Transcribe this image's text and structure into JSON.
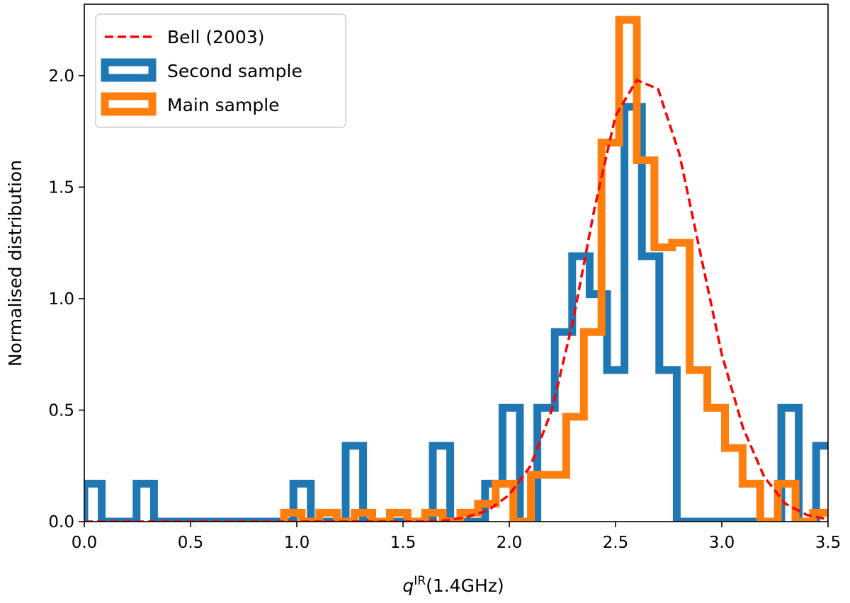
{
  "chart_data": {
    "type": "histogram",
    "title": "",
    "xlabel": {
      "italic": "q",
      "superscript": "IR",
      "rest": "(1.4GHz)"
    },
    "ylabel": "Normalised distribution",
    "xlim": [
      0.0,
      3.5
    ],
    "ylim": [
      0.0,
      2.32
    ],
    "xticks": [
      "0.0",
      "0.5",
      "1.0",
      "1.5",
      "2.0",
      "2.5",
      "3.0",
      "3.5"
    ],
    "yticks": [
      "0.0",
      "0.5",
      "1.0",
      "1.5",
      "2.0"
    ],
    "grid": false,
    "legend_position": "top-left",
    "series": [
      {
        "name": "Second sample",
        "kind": "step-histogram",
        "color": "#1f77b4",
        "bin_edges": [
          0.0,
          0.082,
          0.164,
          0.246,
          0.328,
          0.41,
          0.492,
          0.574,
          0.656,
          0.738,
          0.82,
          0.902,
          0.984,
          1.066,
          1.148,
          1.23,
          1.312,
          1.394,
          1.476,
          1.558,
          1.64,
          1.722,
          1.804,
          1.886,
          1.968,
          2.05,
          2.132,
          2.214,
          2.296,
          2.378,
          2.46,
          2.542,
          2.624,
          2.706,
          2.788,
          2.87,
          2.952,
          3.034,
          3.116,
          3.198,
          3.28,
          3.362,
          3.444,
          3.526
        ],
        "values": [
          0.17,
          0,
          0,
          0.17,
          0,
          0,
          0,
          0,
          0,
          0,
          0,
          0,
          0.17,
          0,
          0,
          0.34,
          0,
          0,
          0,
          0,
          0.34,
          0,
          0,
          0.17,
          0.51,
          0,
          0.51,
          0.85,
          1.19,
          1.02,
          0.68,
          1.86,
          1.19,
          0.68,
          0,
          0,
          0,
          0,
          0,
          0,
          0.51,
          0,
          0.34
        ]
      },
      {
        "name": "Main sample",
        "kind": "step-histogram",
        "color": "#ff7f0e",
        "bin_edges": [
          0.94,
          1.023,
          1.106,
          1.189,
          1.272,
          1.355,
          1.438,
          1.521,
          1.604,
          1.687,
          1.77,
          1.853,
          1.936,
          2.019,
          2.102,
          2.185,
          2.268,
          2.351,
          2.434,
          2.517,
          2.6,
          2.683,
          2.766,
          2.849,
          2.932,
          3.015,
          3.098,
          3.181,
          3.264,
          3.347,
          3.43,
          3.513
        ],
        "values": [
          0.04,
          0.0,
          0.04,
          0.0,
          0.04,
          0.0,
          0.04,
          0.0,
          0.04,
          0.0,
          0.04,
          0.08,
          0.17,
          0.0,
          0.21,
          0.21,
          0.47,
          0.85,
          1.7,
          2.25,
          1.62,
          1.23,
          1.25,
          0.68,
          0.51,
          0.33,
          0.17,
          0.0,
          0.17,
          0.0,
          0.04
        ]
      },
      {
        "name": "Bell (2003)",
        "kind": "line",
        "style": "dashed",
        "color": "#ff0000",
        "x": [
          0.0,
          1.6,
          1.7,
          1.8,
          1.9,
          2.0,
          2.1,
          2.2,
          2.3,
          2.4,
          2.5,
          2.6,
          2.7,
          2.8,
          2.9,
          3.0,
          3.1,
          3.2,
          3.3,
          3.4,
          3.5
        ],
        "y": [
          0.0,
          0.0,
          0.005,
          0.02,
          0.05,
          0.12,
          0.25,
          0.5,
          0.9,
          1.4,
          1.82,
          1.98,
          1.94,
          1.65,
          1.2,
          0.75,
          0.42,
          0.2,
          0.08,
          0.03,
          0.01
        ]
      }
    ],
    "legend_order": [
      "Bell (2003)",
      "Second sample",
      "Main sample"
    ]
  }
}
